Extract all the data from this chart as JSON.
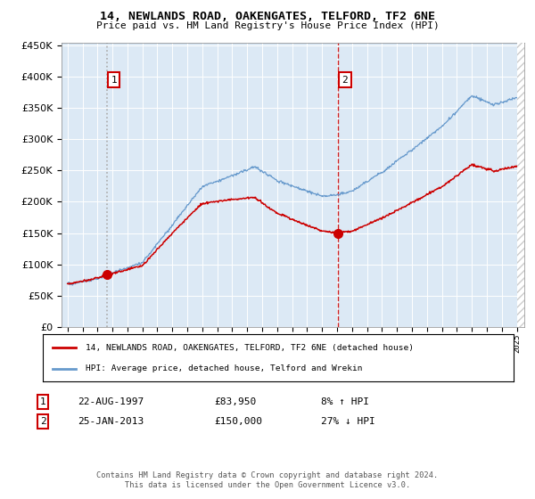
{
  "title": "14, NEWLANDS ROAD, OAKENGATES, TELFORD, TF2 6NE",
  "subtitle": "Price paid vs. HM Land Registry's House Price Index (HPI)",
  "property_label": "14, NEWLANDS ROAD, OAKENGATES, TELFORD, TF2 6NE (detached house)",
  "hpi_label": "HPI: Average price, detached house, Telford and Wrekin",
  "annotation1_date": "22-AUG-1997",
  "annotation1_price": "£83,950",
  "annotation1_hpi": "8% ↑ HPI",
  "annotation2_date": "25-JAN-2013",
  "annotation2_price": "£150,000",
  "annotation2_hpi": "27% ↓ HPI",
  "footer": "Contains HM Land Registry data © Crown copyright and database right 2024.\nThis data is licensed under the Open Government Licence v3.0.",
  "sale1_year": 1997.64,
  "sale1_price": 83950,
  "sale2_year": 2013.07,
  "sale2_price": 150000,
  "property_color": "#cc0000",
  "hpi_color": "#6699cc",
  "vline1_color": "#999999",
  "vline2_color": "#cc0000",
  "background_color": "#dce9f5",
  "plot_bg": "#dce9f5",
  "ylim": [
    0,
    455000
  ],
  "xlim_start": 1994.6,
  "xlim_end": 2025.5
}
